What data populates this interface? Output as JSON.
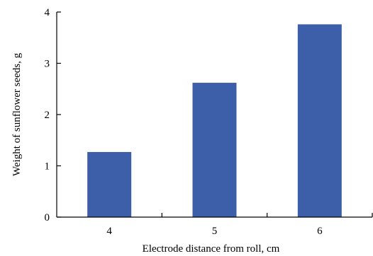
{
  "chart_data": {
    "type": "bar",
    "title": "",
    "xlabel": "Electrode distance from roll, cm",
    "ylabel": "Weight of sunflower seeds, g",
    "categories": [
      "4",
      "5",
      "6"
    ],
    "values": [
      1.27,
      2.62,
      3.76
    ],
    "ylim": [
      0,
      4
    ],
    "yticks": [
      "0",
      "1",
      "2",
      "3",
      "4"
    ],
    "grid": false,
    "legend": "none",
    "bar_color": "#3d5ea8"
  }
}
